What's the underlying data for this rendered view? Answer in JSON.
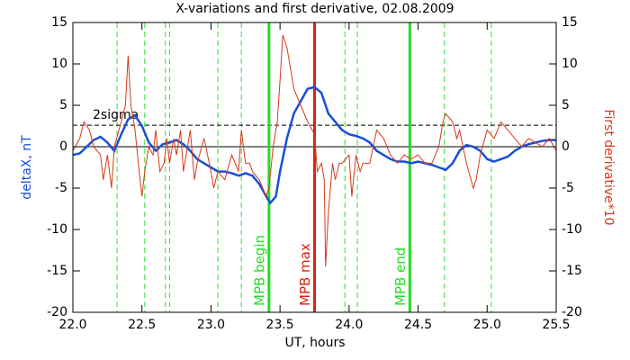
{
  "chart_data": {
    "type": "line",
    "title": "X-variations and first derivative, 02.08.2009",
    "x_label": "UT, hours",
    "y_label": "deltaX, nT",
    "y2_label": "First derivative*10",
    "xlim": [
      22,
      25.5
    ],
    "xticks": [
      {
        "value": 22,
        "label": "22.0"
      },
      22.5,
      {
        "value": 23,
        "label": "23.0"
      },
      23.5,
      {
        "value": 24,
        "label": "24.0"
      },
      24.5,
      {
        "value": 25,
        "label": "25.0"
      },
      25.5
    ],
    "ylim": [
      -20,
      15
    ],
    "yticks": [
      -20,
      -15,
      -10,
      -5,
      0,
      5,
      10,
      15
    ],
    "y2lim": [
      -20,
      15
    ],
    "y2ticks": [
      -20,
      -15,
      -10,
      -5,
      0,
      5,
      10,
      15
    ],
    "series": [
      {
        "name": "deltaX, nT",
        "color": "#1a4fd6",
        "x": [
          22.0,
          22.05,
          22.1,
          22.15,
          22.2,
          22.25,
          22.3,
          22.35,
          22.4,
          22.45,
          22.5,
          22.55,
          22.6,
          22.65,
          22.7,
          22.75,
          22.8,
          22.85,
          22.9,
          22.95,
          23.0,
          23.05,
          23.1,
          23.15,
          23.2,
          23.25,
          23.3,
          23.35,
          23.4,
          23.43,
          23.47,
          23.5,
          23.55,
          23.6,
          23.65,
          23.7,
          23.75,
          23.8,
          23.85,
          23.9,
          23.95,
          24.0,
          24.05,
          24.1,
          24.15,
          24.2,
          24.25,
          24.3,
          24.35,
          24.4,
          24.45,
          24.5,
          24.55,
          24.6,
          24.65,
          24.7,
          24.75,
          24.8,
          24.85,
          24.9,
          24.95,
          25.0,
          25.05,
          25.1,
          25.15,
          25.2,
          25.25,
          25.3,
          25.35,
          25.4,
          25.45,
          25.5
        ],
        "values": [
          -1,
          -0.8,
          0,
          0.8,
          1.2,
          0.5,
          -0.5,
          1.5,
          3.3,
          3.8,
          2.5,
          0.5,
          -0.5,
          0.3,
          0.5,
          0.8,
          0.3,
          -0.5,
          -1.5,
          -2,
          -2.5,
          -3,
          -3,
          -3.2,
          -3.5,
          -3.2,
          -3.5,
          -4.5,
          -6,
          -6.8,
          -6,
          -3,
          1,
          4,
          5.5,
          7,
          7.2,
          6.5,
          4,
          3,
          2,
          1.5,
          1.3,
          1,
          0.5,
          -0.5,
          -1,
          -1.5,
          -1.8,
          -1.8,
          -2,
          -1.8,
          -2,
          -2.2,
          -2.5,
          -2.8,
          -2,
          -0.5,
          0.2,
          0,
          -0.5,
          -1.5,
          -1.8,
          -1.5,
          -1.2,
          -0.5,
          0,
          0.3,
          0.5,
          0.7,
          0.8,
          0.8
        ]
      },
      {
        "name": "First derivative*10",
        "color": "#d43a1a",
        "axis": "y2",
        "x": [
          22.0,
          22.05,
          22.08,
          22.12,
          22.15,
          22.2,
          22.22,
          22.25,
          22.28,
          22.3,
          22.35,
          22.38,
          22.4,
          22.42,
          22.45,
          22.48,
          22.5,
          22.52,
          22.55,
          22.58,
          22.6,
          22.63,
          22.66,
          22.68,
          22.7,
          22.73,
          22.75,
          22.78,
          22.8,
          22.85,
          22.88,
          22.9,
          22.95,
          23.0,
          23.02,
          23.05,
          23.1,
          23.15,
          23.2,
          23.22,
          23.25,
          23.28,
          23.3,
          23.35,
          23.4,
          23.42,
          23.45,
          23.48,
          23.5,
          23.52,
          23.55,
          23.58,
          23.6,
          23.65,
          23.7,
          23.75,
          23.77,
          23.8,
          23.82,
          23.83,
          23.85,
          23.88,
          23.9,
          23.93,
          23.95,
          24.0,
          24.02,
          24.05,
          24.08,
          24.1,
          24.15,
          24.2,
          24.25,
          24.3,
          24.35,
          24.4,
          24.45,
          24.5,
          24.55,
          24.6,
          24.65,
          24.68,
          24.7,
          24.75,
          24.78,
          24.8,
          24.85,
          24.9,
          24.92,
          24.95,
          25.0,
          25.05,
          25.1,
          25.15,
          25.2,
          25.25,
          25.3,
          25.35,
          25.4,
          25.45,
          25.5
        ],
        "values": [
          -0.5,
          1,
          3,
          2,
          0,
          -1,
          -4,
          -1,
          -5,
          0,
          3,
          5,
          11,
          5,
          2,
          -3,
          -6,
          -3,
          0,
          -1,
          2,
          -3,
          -2,
          1,
          -2,
          1,
          -1,
          2,
          -3,
          2,
          -4,
          -2,
          1,
          -3,
          -5,
          -3,
          -4,
          -1,
          -3,
          2,
          -2,
          -2,
          -3,
          -4,
          -6,
          -5,
          0,
          3,
          8,
          13.5,
          12,
          9,
          7,
          5,
          3,
          1.5,
          -3,
          -2,
          -4,
          -14.5,
          -8,
          -2,
          -4,
          -2,
          -2,
          -1,
          -6,
          -1,
          -3,
          -2,
          -2,
          2,
          1,
          -1,
          -2,
          -1,
          -1.5,
          -1,
          -2,
          -2,
          0,
          3,
          4,
          3,
          1,
          2,
          -2,
          -5,
          -4,
          -1,
          2,
          1,
          3,
          2,
          1,
          0,
          1,
          0.5,
          0,
          1,
          -0.5
        ]
      }
    ],
    "threshold": {
      "value": 2.6,
      "label": "2sigma"
    },
    "dashed_lines": {
      "color": "#33dd33",
      "x": [
        22.32,
        22.52,
        22.67,
        22.7,
        23.05,
        23.22,
        23.97,
        24.06,
        24.69,
        25.03
      ]
    },
    "markers": [
      {
        "x": 23.42,
        "label": "MPB begin",
        "color": "#22dd22"
      },
      {
        "x": 23.75,
        "label": "MPB max",
        "color": "#dd2211"
      },
      {
        "x": 24.44,
        "label": "MPB end",
        "color": "#22dd22"
      }
    ]
  }
}
